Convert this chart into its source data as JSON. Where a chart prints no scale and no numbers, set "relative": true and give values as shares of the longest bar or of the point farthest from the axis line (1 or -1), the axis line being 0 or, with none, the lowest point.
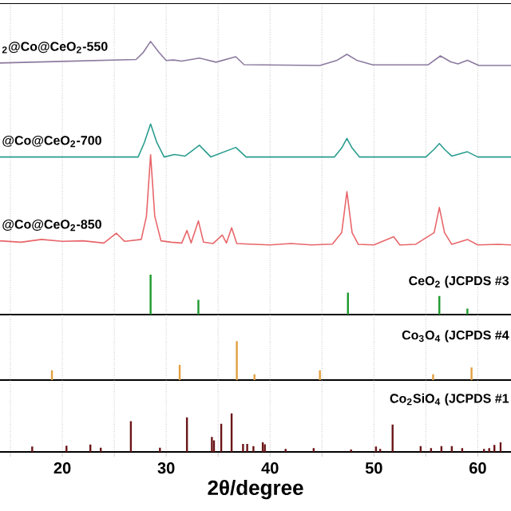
{
  "chart_data": [
    {
      "type": "line",
      "relative": true,
      "xlim": [
        14,
        63.2
      ],
      "xticks": [
        {
          "value": 15,
          "label": null
        },
        20,
        {
          "value": 25,
          "label": null
        },
        30,
        {
          "value": 35,
          "label": null
        },
        40,
        {
          "value": 45,
          "label": null
        },
        50,
        {
          "value": 55,
          "label": null
        },
        60
      ],
      "grid": "x",
      "tick_labels": false,
      "series": [
        {
          "name": "$_{2}$@Co@CeO$_{2}$-550",
          "color": "#8c7ba0",
          "x": [
            14.0,
            20,
            27.1,
            27.8,
            28.5,
            29.3,
            30.0,
            30.7,
            31.5,
            33.2,
            34.8,
            36.7,
            37.5,
            44.8,
            46.4,
            47.4,
            48.4,
            49.9,
            55.2,
            56.4,
            57.4,
            58.1,
            59.0,
            60.1,
            63.2
          ],
          "values": [
            0.921,
            0.927,
            0.934,
            0.96,
            1.0,
            0.96,
            0.93,
            0.932,
            0.928,
            0.939,
            0.924,
            0.944,
            0.915,
            0.912,
            0.93,
            0.953,
            0.93,
            0.914,
            0.914,
            0.947,
            0.925,
            0.918,
            0.931,
            0.912,
            0.912
          ]
        },
        {
          "name": "@Co@CeO$_{2}$-700",
          "color": "#2a9d8f",
          "x": [
            14.0,
            27.3,
            27.9,
            28.5,
            29.1,
            29.8,
            30.8,
            31.8,
            33.2,
            34.3,
            36.7,
            37.7,
            46.2,
            46.9,
            47.4,
            47.9,
            48.6,
            55.0,
            55.8,
            56.3,
            56.8,
            57.5,
            59.0,
            60.0,
            63.2
          ],
          "values": [
            0.577,
            0.577,
            0.63,
            0.698,
            0.63,
            0.577,
            0.586,
            0.58,
            0.62,
            0.577,
            0.612,
            0.577,
            0.577,
            0.61,
            0.645,
            0.61,
            0.577,
            0.577,
            0.605,
            0.626,
            0.605,
            0.58,
            0.596,
            0.577,
            0.577
          ]
        },
        {
          "name": "@Co@CeO$_{2}$-850",
          "color": "#e8666a",
          "x": [
            14.0,
            16,
            18,
            20,
            22,
            24,
            25.2,
            26,
            27.6,
            28.1,
            28.5,
            28.9,
            29.5,
            30.5,
            31.5,
            32.0,
            32.4,
            33.1,
            33.6,
            34.5,
            35.4,
            35.8,
            36.3,
            36.8,
            38,
            40,
            42,
            44,
            46,
            46.9,
            47.4,
            47.9,
            48.5,
            50,
            51.9,
            52.5,
            54,
            55.8,
            56.3,
            56.8,
            57.5,
            59.0,
            60,
            62,
            63.2
          ],
          "values": [
            0.27,
            0.265,
            0.275,
            0.268,
            0.27,
            0.262,
            0.298,
            0.268,
            0.275,
            0.36,
            0.585,
            0.36,
            0.27,
            0.265,
            0.262,
            0.308,
            0.262,
            0.343,
            0.265,
            0.26,
            0.291,
            0.262,
            0.318,
            0.26,
            0.258,
            0.255,
            0.26,
            0.255,
            0.258,
            0.3,
            0.45,
            0.3,
            0.257,
            0.255,
            0.285,
            0.255,
            0.257,
            0.3,
            0.392,
            0.3,
            0.257,
            0.275,
            0.255,
            0.257,
            0.255
          ]
        },
        {
          "type": "bar",
          "name": "CeO$_{2}$ (JCPDS #3",
          "color": "#1e9a2e",
          "x": [
            28.5,
            33.1,
            47.5,
            56.3,
            59.0
          ],
          "values": [
            0.146,
            0.054,
            0.08,
            0.068,
            0.022
          ]
        }
      ]
    },
    {
      "type": "bar",
      "relative": true,
      "xlim": [
        14,
        63.2
      ],
      "xticks": [
        {
          "value": 15,
          "label": null
        },
        20,
        {
          "value": 25,
          "label": null
        },
        30,
        {
          "value": 35,
          "label": null
        },
        40,
        {
          "value": 45,
          "label": null
        },
        50,
        {
          "value": 55,
          "label": null
        },
        60
      ],
      "grid": "x",
      "tick_labels": false,
      "series": [
        {
          "name": "Co$_{3}$O$_{4}$ (JCPDS #4",
          "color": "#e0a040",
          "x": [
            19.0,
            31.3,
            36.8,
            38.5,
            44.8,
            55.7,
            59.4
          ],
          "values": [
            0.25,
            0.39,
            1.0,
            0.15,
            0.25,
            0.15,
            0.32
          ]
        }
      ]
    },
    {
      "type": "bar",
      "relative": true,
      "xlim": [
        14,
        63.2
      ],
      "xticks": [
        {
          "value": 15,
          "label": null
        },
        20,
        {
          "value": 25,
          "label": null
        },
        30,
        {
          "value": 35,
          "label": null
        },
        40,
        {
          "value": 45,
          "label": null
        },
        50,
        {
          "value": 55,
          "label": null
        },
        60
      ],
      "grid": "x",
      "xlabel": "2θ/degree",
      "series": [
        {
          "name": "Co$_{2}$SiO$_{4}$ (JCPDS #1",
          "color": "#6b1518",
          "x": [
            17.1,
            20.4,
            22.7,
            23.7,
            26.6,
            29.4,
            32.0,
            34.4,
            34.6,
            35.3,
            36.3,
            37.4,
            37.8,
            38.4,
            39.3,
            39.5,
            41.5,
            44.2,
            47.8,
            50.2,
            50.6,
            51.8,
            54.5,
            55.5,
            56.5,
            57.5,
            58.5,
            60.6,
            61.1,
            61.6,
            62.2
          ],
          "values": [
            0.14,
            0.16,
            0.19,
            0.11,
            0.8,
            0.11,
            0.9,
            0.39,
            0.3,
            0.73,
            1.0,
            0.21,
            0.21,
            0.15,
            0.25,
            0.2,
            0.08,
            0.1,
            0.06,
            0.14,
            0.08,
            0.71,
            0.15,
            0.1,
            0.15,
            0.15,
            0.1,
            0.08,
            0.1,
            0.18,
            0.25
          ]
        }
      ]
    }
  ]
}
